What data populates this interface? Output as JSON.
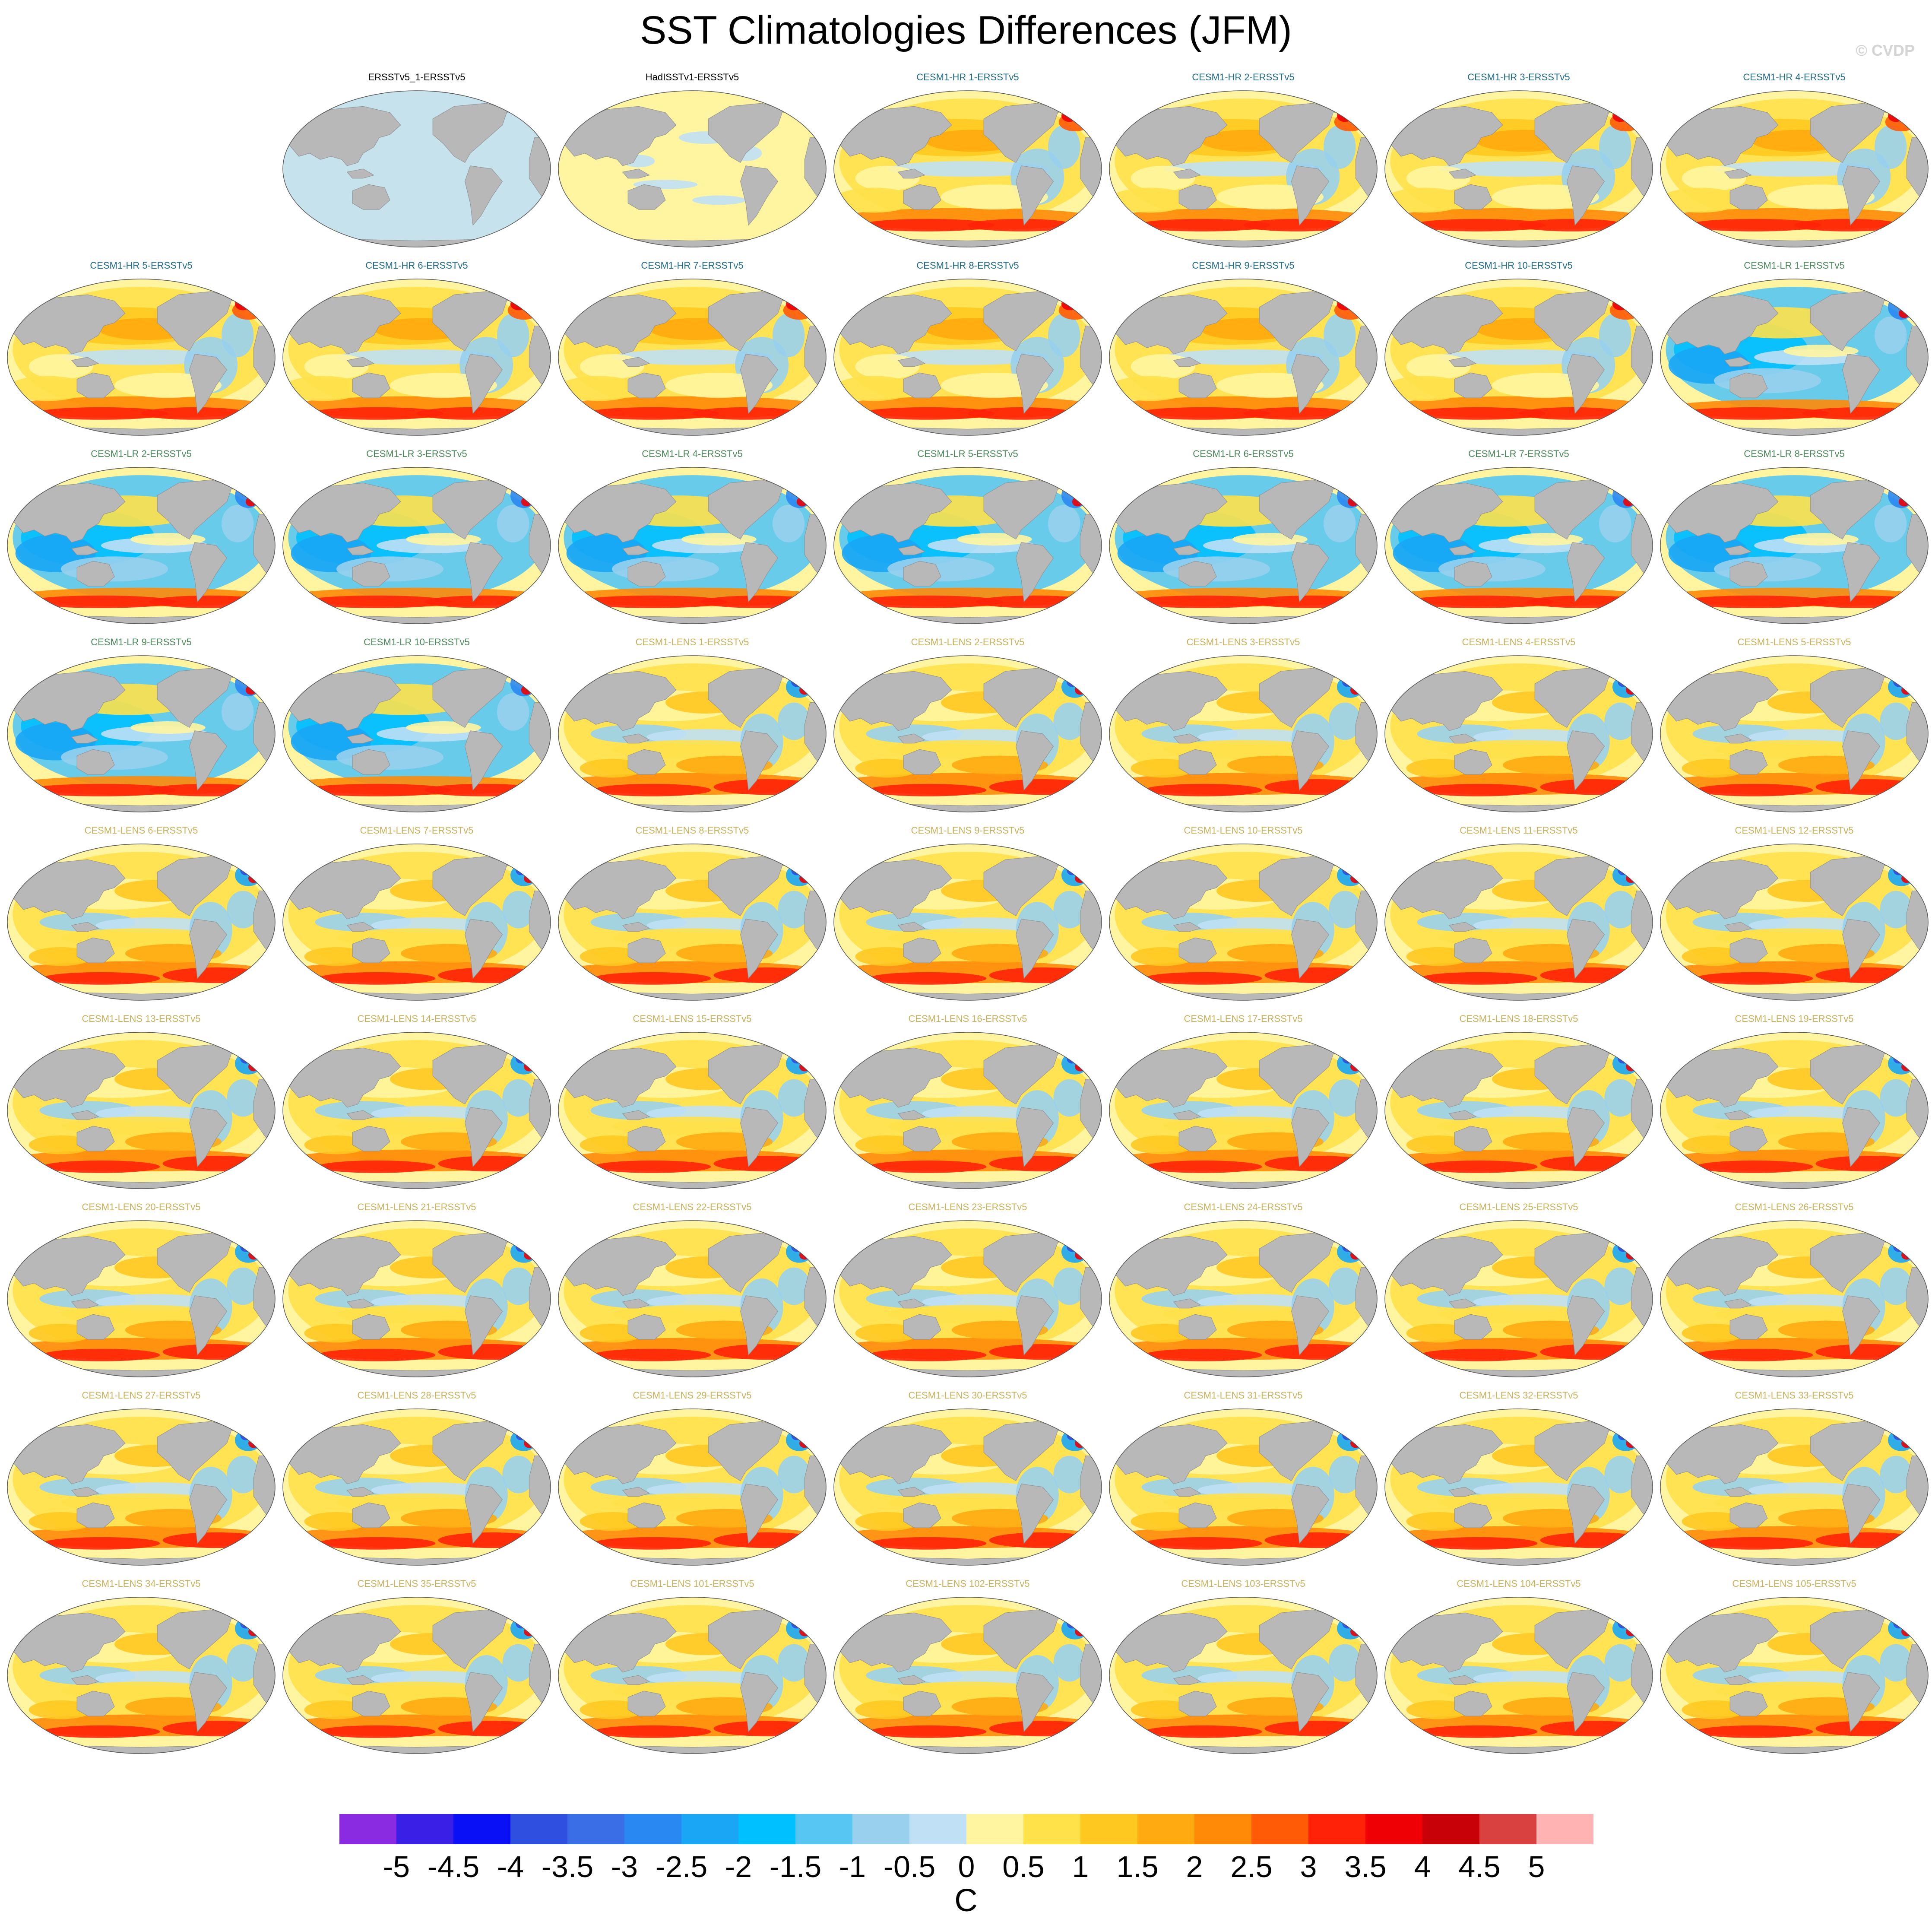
{
  "header": {
    "title": "SST Climatologies Differences (JFM)",
    "credit": "© CVDP"
  },
  "chart_data": {
    "type": "heatmap",
    "title": "SST Climatologies Differences (JFM)",
    "colorbar": {
      "unit": "C",
      "ticks": [
        "-5",
        "-4.5",
        "-4",
        "-3.5",
        "-3",
        "-2.5",
        "-2",
        "-1.5",
        "-1",
        "-0.5",
        "0",
        "0.5",
        "1",
        "1.5",
        "2",
        "2.5",
        "3",
        "3.5",
        "4",
        "4.5",
        "5"
      ],
      "colors": [
        "#8a2be2",
        "#3a1fe6",
        "#0a10f5",
        "#2f4fe0",
        "#3a6ee6",
        "#2a88f2",
        "#1aa6f5",
        "#00c0ff",
        "#58c6f2",
        "#98d0ee",
        "#bfe0f5",
        "#fff5a0",
        "#ffe14a",
        "#ffc820",
        "#ffaa10",
        "#ff8a08",
        "#ff5a06",
        "#ff2208",
        "#ee0005",
        "#c80008",
        "#d94040",
        "#ffb3b3"
      ]
    },
    "panels": [
      {
        "label": "",
        "group": "none"
      },
      {
        "label": "ERSSTv5_1-ERSSTv5",
        "group": "obs",
        "pattern": "cool_uniform"
      },
      {
        "label": "HadISSTv1-ERSSTv5",
        "group": "obs",
        "pattern": "warm_uniform"
      },
      {
        "label": "CESM1-HR 1-ERSSTv5",
        "group": "hr",
        "pattern": "hr"
      },
      {
        "label": "CESM1-HR 2-ERSSTv5",
        "group": "hr",
        "pattern": "hr"
      },
      {
        "label": "CESM1-HR 3-ERSSTv5",
        "group": "hr",
        "pattern": "hr"
      },
      {
        "label": "CESM1-HR 4-ERSSTv5",
        "group": "hr",
        "pattern": "hr"
      },
      {
        "label": "CESM1-HR 5-ERSSTv5",
        "group": "hr",
        "pattern": "hr"
      },
      {
        "label": "CESM1-HR 6-ERSSTv5",
        "group": "hr",
        "pattern": "hr"
      },
      {
        "label": "CESM1-HR 7-ERSSTv5",
        "group": "hr",
        "pattern": "hr"
      },
      {
        "label": "CESM1-HR 8-ERSSTv5",
        "group": "hr",
        "pattern": "hr"
      },
      {
        "label": "CESM1-HR 9-ERSSTv5",
        "group": "hr",
        "pattern": "hr"
      },
      {
        "label": "CESM1-HR 10-ERSSTv5",
        "group": "hr",
        "pattern": "hr"
      },
      {
        "label": "CESM1-LR 1-ERSSTv5",
        "group": "lr",
        "pattern": "lr"
      },
      {
        "label": "CESM1-LR 2-ERSSTv5",
        "group": "lr",
        "pattern": "lr"
      },
      {
        "label": "CESM1-LR 3-ERSSTv5",
        "group": "lr",
        "pattern": "lr"
      },
      {
        "label": "CESM1-LR 4-ERSSTv5",
        "group": "lr",
        "pattern": "lr"
      },
      {
        "label": "CESM1-LR 5-ERSSTv5",
        "group": "lr",
        "pattern": "lr"
      },
      {
        "label": "CESM1-LR 6-ERSSTv5",
        "group": "lr",
        "pattern": "lr"
      },
      {
        "label": "CESM1-LR 7-ERSSTv5",
        "group": "lr",
        "pattern": "lr"
      },
      {
        "label": "CESM1-LR 8-ERSSTv5",
        "group": "lr",
        "pattern": "lr"
      },
      {
        "label": "CESM1-LR 9-ERSSTv5",
        "group": "lr",
        "pattern": "lr"
      },
      {
        "label": "CESM1-LR 10-ERSSTv5",
        "group": "lr",
        "pattern": "lr"
      },
      {
        "label": "CESM1-LENS 1-ERSSTv5",
        "group": "lens",
        "pattern": "lens"
      },
      {
        "label": "CESM1-LENS 2-ERSSTv5",
        "group": "lens",
        "pattern": "lens"
      },
      {
        "label": "CESM1-LENS 3-ERSSTv5",
        "group": "lens",
        "pattern": "lens"
      },
      {
        "label": "CESM1-LENS 4-ERSSTv5",
        "group": "lens",
        "pattern": "lens"
      },
      {
        "label": "CESM1-LENS 5-ERSSTv5",
        "group": "lens",
        "pattern": "lens"
      },
      {
        "label": "CESM1-LENS 6-ERSSTv5",
        "group": "lens",
        "pattern": "lens"
      },
      {
        "label": "CESM1-LENS 7-ERSSTv5",
        "group": "lens",
        "pattern": "lens"
      },
      {
        "label": "CESM1-LENS 8-ERSSTv5",
        "group": "lens",
        "pattern": "lens"
      },
      {
        "label": "CESM1-LENS 9-ERSSTv5",
        "group": "lens",
        "pattern": "lens"
      },
      {
        "label": "CESM1-LENS 10-ERSSTv5",
        "group": "lens",
        "pattern": "lens"
      },
      {
        "label": "CESM1-LENS 11-ERSSTv5",
        "group": "lens",
        "pattern": "lens"
      },
      {
        "label": "CESM1-LENS 12-ERSSTv5",
        "group": "lens",
        "pattern": "lens"
      },
      {
        "label": "CESM1-LENS 13-ERSSTv5",
        "group": "lens",
        "pattern": "lens"
      },
      {
        "label": "CESM1-LENS 14-ERSSTv5",
        "group": "lens",
        "pattern": "lens"
      },
      {
        "label": "CESM1-LENS 15-ERSSTv5",
        "group": "lens",
        "pattern": "lens"
      },
      {
        "label": "CESM1-LENS 16-ERSSTv5",
        "group": "lens",
        "pattern": "lens"
      },
      {
        "label": "CESM1-LENS 17-ERSSTv5",
        "group": "lens",
        "pattern": "lens"
      },
      {
        "label": "CESM1-LENS 18-ERSSTv5",
        "group": "lens",
        "pattern": "lens"
      },
      {
        "label": "CESM1-LENS 19-ERSSTv5",
        "group": "lens",
        "pattern": "lens"
      },
      {
        "label": "CESM1-LENS 20-ERSSTv5",
        "group": "lens",
        "pattern": "lens"
      },
      {
        "label": "CESM1-LENS 21-ERSSTv5",
        "group": "lens",
        "pattern": "lens"
      },
      {
        "label": "CESM1-LENS 22-ERSSTv5",
        "group": "lens",
        "pattern": "lens"
      },
      {
        "label": "CESM1-LENS 23-ERSSTv5",
        "group": "lens",
        "pattern": "lens"
      },
      {
        "label": "CESM1-LENS 24-ERSSTv5",
        "group": "lens",
        "pattern": "lens"
      },
      {
        "label": "CESM1-LENS 25-ERSSTv5",
        "group": "lens",
        "pattern": "lens"
      },
      {
        "label": "CESM1-LENS 26-ERSSTv5",
        "group": "lens",
        "pattern": "lens"
      },
      {
        "label": "CESM1-LENS 27-ERSSTv5",
        "group": "lens",
        "pattern": "lens"
      },
      {
        "label": "CESM1-LENS 28-ERSSTv5",
        "group": "lens",
        "pattern": "lens"
      },
      {
        "label": "CESM1-LENS 29-ERSSTv5",
        "group": "lens",
        "pattern": "lens"
      },
      {
        "label": "CESM1-LENS 30-ERSSTv5",
        "group": "lens",
        "pattern": "lens"
      },
      {
        "label": "CESM1-LENS 31-ERSSTv5",
        "group": "lens",
        "pattern": "lens"
      },
      {
        "label": "CESM1-LENS 32-ERSSTv5",
        "group": "lens",
        "pattern": "lens"
      },
      {
        "label": "CESM1-LENS 33-ERSSTv5",
        "group": "lens",
        "pattern": "lens"
      },
      {
        "label": "CESM1-LENS 34-ERSSTv5",
        "group": "lens",
        "pattern": "lens"
      },
      {
        "label": "CESM1-LENS 35-ERSSTv5",
        "group": "lens",
        "pattern": "lens"
      },
      {
        "label": "CESM1-LENS 101-ERSSTv5",
        "group": "lens",
        "pattern": "lens"
      },
      {
        "label": "CESM1-LENS 102-ERSSTv5",
        "group": "lens",
        "pattern": "lens"
      },
      {
        "label": "CESM1-LENS 103-ERSSTv5",
        "group": "lens",
        "pattern": "lens"
      },
      {
        "label": "CESM1-LENS 104-ERSSTv5",
        "group": "lens",
        "pattern": "lens"
      },
      {
        "label": "CESM1-LENS 105-ERSSTv5",
        "group": "lens",
        "pattern": "lens"
      }
    ]
  },
  "style": {
    "label_colors": {
      "obs": "#000000",
      "hr": "#1f6b8a",
      "lr": "#4b8a5a",
      "lens": "#c9b15a"
    },
    "land_color": "#b8b8b8",
    "background": "#ffffff"
  }
}
